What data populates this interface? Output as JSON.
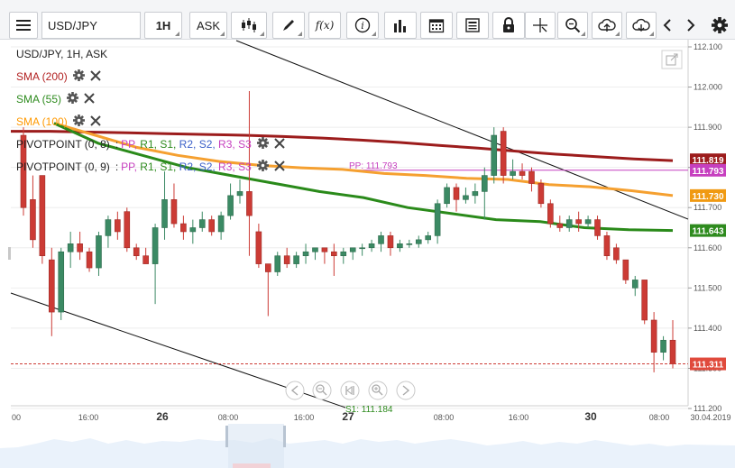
{
  "toolbar": {
    "symbol": "USD/JPY",
    "timeframe": "1H",
    "price_type": "ASK",
    "function_label": "f(x)"
  },
  "chart_title": "USD/JPY, 1H, ASK",
  "indicators": [
    {
      "label": "SMA (200)",
      "color": "#b22222"
    },
    {
      "label": "SMA (55)",
      "color": "#2e8b1e"
    },
    {
      "label": "SMA (100)",
      "color": "#ff9900"
    }
  ],
  "pivot_rows": [
    {
      "label": "PIVOTPOINT (0, 8)",
      "levels": [
        "PP,",
        "R1,",
        "S1,",
        "R2,",
        "S2,",
        "R3,",
        "S3"
      ]
    },
    {
      "label": "PIVOTPOINT (0, 9)",
      "levels": [
        "PP,",
        "R1,",
        "S1,",
        "R2,",
        "S2,",
        "R3,",
        "S3"
      ]
    }
  ],
  "pivot_level_colors": [
    "#c63fbf",
    "#2e8b1e",
    "#2e8b1e",
    "#3a5fc8",
    "#3a5fc8",
    "#c63fbf",
    "#c63fbf"
  ],
  "pp_line_label": "PP: 111.793",
  "bottom_line_label": "S1: 111.184",
  "price_axis_ticks": [
    "112.100",
    "112.000",
    "111.900",
    "111.800",
    "111.700",
    "111.600",
    "111.500",
    "111.400",
    "111.300",
    "111.200"
  ],
  "price_badges": [
    {
      "value": "111.819",
      "color": "#9c1c1c"
    },
    {
      "value": "111.793",
      "color": "#c63fbf"
    },
    {
      "value": "111.730",
      "color": "#f09a12"
    },
    {
      "value": "111.643",
      "color": "#2e8b1e"
    },
    {
      "value": "111.311",
      "color": "#e04a3c"
    }
  ],
  "time_axis_labels": [
    "00",
    "16:00",
    "26",
    "08:00",
    "16:00",
    "27",
    "08:00",
    "16:00",
    "30",
    "08:00",
    "30.04.2019"
  ],
  "colors": {
    "bull_candle": "#3b8a64",
    "bear_candle": "#cc3b35",
    "sma200": "#9c1c1c",
    "sma100": "#f5a030",
    "sma55": "#2a8a1a",
    "pivot": "#c63fbf",
    "last_price": "#cc3b35"
  },
  "chart_data": {
    "type": "candlestick",
    "symbol": "USD/JPY",
    "interval": "1H",
    "ylim": [
      111.2,
      112.1
    ],
    "candles": [
      {
        "o": 111.88,
        "h": 111.9,
        "l": 111.68,
        "c": 111.7
      },
      {
        "o": 111.72,
        "h": 111.78,
        "l": 111.6,
        "c": 111.62
      },
      {
        "o": 111.78,
        "h": 111.78,
        "l": 111.56,
        "c": 111.58
      },
      {
        "o": 111.57,
        "h": 111.6,
        "l": 111.38,
        "c": 111.44
      },
      {
        "o": 111.44,
        "h": 111.6,
        "l": 111.42,
        "c": 111.59
      },
      {
        "o": 111.59,
        "h": 111.64,
        "l": 111.55,
        "c": 111.61
      },
      {
        "o": 111.61,
        "h": 111.64,
        "l": 111.57,
        "c": 111.59
      },
      {
        "o": 111.59,
        "h": 111.6,
        "l": 111.54,
        "c": 111.55
      },
      {
        "o": 111.55,
        "h": 111.64,
        "l": 111.53,
        "c": 111.63
      },
      {
        "o": 111.63,
        "h": 111.68,
        "l": 111.6,
        "c": 111.67
      },
      {
        "o": 111.67,
        "h": 111.69,
        "l": 111.62,
        "c": 111.64
      },
      {
        "o": 111.69,
        "h": 111.7,
        "l": 111.59,
        "c": 111.6
      },
      {
        "o": 111.6,
        "h": 111.61,
        "l": 111.57,
        "c": 111.58
      },
      {
        "o": 111.58,
        "h": 111.6,
        "l": 111.56,
        "c": 111.56
      },
      {
        "o": 111.56,
        "h": 111.66,
        "l": 111.46,
        "c": 111.65
      },
      {
        "o": 111.65,
        "h": 111.79,
        "l": 111.62,
        "c": 111.72
      },
      {
        "o": 111.72,
        "h": 111.76,
        "l": 111.65,
        "c": 111.66
      },
      {
        "o": 111.66,
        "h": 111.68,
        "l": 111.62,
        "c": 111.64
      },
      {
        "o": 111.64,
        "h": 111.67,
        "l": 111.61,
        "c": 111.65
      },
      {
        "o": 111.65,
        "h": 111.69,
        "l": 111.64,
        "c": 111.67
      },
      {
        "o": 111.67,
        "h": 111.68,
        "l": 111.63,
        "c": 111.64
      },
      {
        "o": 111.64,
        "h": 111.69,
        "l": 111.62,
        "c": 111.68
      },
      {
        "o": 111.68,
        "h": 111.76,
        "l": 111.67,
        "c": 111.73
      },
      {
        "o": 111.73,
        "h": 111.77,
        "l": 111.71,
        "c": 111.74
      },
      {
        "o": 111.74,
        "h": 111.99,
        "l": 111.58,
        "c": 111.68
      },
      {
        "o": 111.64,
        "h": 111.66,
        "l": 111.55,
        "c": 111.56
      },
      {
        "o": 111.56,
        "h": 111.56,
        "l": 111.43,
        "c": 111.54
      },
      {
        "o": 111.54,
        "h": 111.59,
        "l": 111.53,
        "c": 111.58
      },
      {
        "o": 111.58,
        "h": 111.6,
        "l": 111.55,
        "c": 111.56
      },
      {
        "o": 111.56,
        "h": 111.59,
        "l": 111.55,
        "c": 111.58
      },
      {
        "o": 111.58,
        "h": 111.61,
        "l": 111.56,
        "c": 111.59
      },
      {
        "o": 111.59,
        "h": 111.6,
        "l": 111.57,
        "c": 111.6
      },
      {
        "o": 111.6,
        "h": 111.6,
        "l": 111.56,
        "c": 111.59
      },
      {
        "o": 111.59,
        "h": 111.61,
        "l": 111.53,
        "c": 111.58
      },
      {
        "o": 111.58,
        "h": 111.6,
        "l": 111.56,
        "c": 111.59
      },
      {
        "o": 111.59,
        "h": 111.6,
        "l": 111.57,
        "c": 111.6
      },
      {
        "o": 111.6,
        "h": 111.61,
        "l": 111.58,
        "c": 111.6
      },
      {
        "o": 111.6,
        "h": 111.62,
        "l": 111.59,
        "c": 111.61
      },
      {
        "o": 111.61,
        "h": 111.64,
        "l": 111.59,
        "c": 111.63
      },
      {
        "o": 111.63,
        "h": 111.64,
        "l": 111.58,
        "c": 111.6
      },
      {
        "o": 111.6,
        "h": 111.62,
        "l": 111.59,
        "c": 111.61
      },
      {
        "o": 111.61,
        "h": 111.62,
        "l": 111.6,
        "c": 111.61
      },
      {
        "o": 111.61,
        "h": 111.63,
        "l": 111.6,
        "c": 111.62
      },
      {
        "o": 111.62,
        "h": 111.64,
        "l": 111.61,
        "c": 111.63
      },
      {
        "o": 111.63,
        "h": 111.72,
        "l": 111.61,
        "c": 111.71
      },
      {
        "o": 111.71,
        "h": 111.76,
        "l": 111.7,
        "c": 111.75
      },
      {
        "o": 111.75,
        "h": 111.76,
        "l": 111.69,
        "c": 111.72
      },
      {
        "o": 111.72,
        "h": 111.75,
        "l": 111.71,
        "c": 111.73
      },
      {
        "o": 111.73,
        "h": 111.76,
        "l": 111.71,
        "c": 111.74
      },
      {
        "o": 111.74,
        "h": 111.8,
        "l": 111.67,
        "c": 111.78
      },
      {
        "o": 111.78,
        "h": 111.9,
        "l": 111.76,
        "c": 111.88
      },
      {
        "o": 111.89,
        "h": 111.9,
        "l": 111.76,
        "c": 111.78
      },
      {
        "o": 111.78,
        "h": 111.82,
        "l": 111.77,
        "c": 111.79
      },
      {
        "o": 111.79,
        "h": 111.81,
        "l": 111.77,
        "c": 111.78
      },
      {
        "o": 111.79,
        "h": 111.8,
        "l": 111.74,
        "c": 111.76
      },
      {
        "o": 111.76,
        "h": 111.77,
        "l": 111.7,
        "c": 111.71
      },
      {
        "o": 111.71,
        "h": 111.72,
        "l": 111.65,
        "c": 111.66
      },
      {
        "o": 111.66,
        "h": 111.68,
        "l": 111.64,
        "c": 111.65
      },
      {
        "o": 111.65,
        "h": 111.68,
        "l": 111.64,
        "c": 111.67
      },
      {
        "o": 111.67,
        "h": 111.69,
        "l": 111.64,
        "c": 111.66
      },
      {
        "o": 111.66,
        "h": 111.68,
        "l": 111.65,
        "c": 111.67
      },
      {
        "o": 111.67,
        "h": 111.68,
        "l": 111.62,
        "c": 111.63
      },
      {
        "o": 111.63,
        "h": 111.64,
        "l": 111.57,
        "c": 111.58
      },
      {
        "o": 111.6,
        "h": 111.61,
        "l": 111.56,
        "c": 111.57
      },
      {
        "o": 111.57,
        "h": 111.57,
        "l": 111.51,
        "c": 111.52
      },
      {
        "o": 111.5,
        "h": 111.53,
        "l": 111.48,
        "c": 111.52
      },
      {
        "o": 111.52,
        "h": 111.52,
        "l": 111.41,
        "c": 111.42
      },
      {
        "o": 111.42,
        "h": 111.44,
        "l": 111.29,
        "c": 111.34
      },
      {
        "o": 111.34,
        "h": 111.38,
        "l": 111.32,
        "c": 111.37
      },
      {
        "o": 111.37,
        "h": 111.42,
        "l": 111.3,
        "c": 111.311
      }
    ],
    "sma200": [
      111.89,
      111.89,
      111.888,
      111.886,
      111.884,
      111.882,
      111.88,
      111.877,
      111.873,
      111.868,
      111.862,
      111.855,
      111.848,
      111.84,
      111.833,
      111.827,
      111.821,
      111.817
    ],
    "sma100": [
      111.91,
      111.88,
      111.85,
      111.83,
      111.815,
      111.805,
      111.799,
      111.795,
      111.785,
      111.78,
      111.773,
      111.77,
      111.757,
      111.752,
      111.742,
      111.73
    ],
    "sma55": [
      111.91,
      111.86,
      111.83,
      111.8,
      111.78,
      111.76,
      111.74,
      111.725,
      111.7,
      111.685,
      111.67,
      111.665,
      111.65,
      111.645,
      111.643
    ],
    "pivot_pp": 111.793,
    "last_price": 111.311
  }
}
